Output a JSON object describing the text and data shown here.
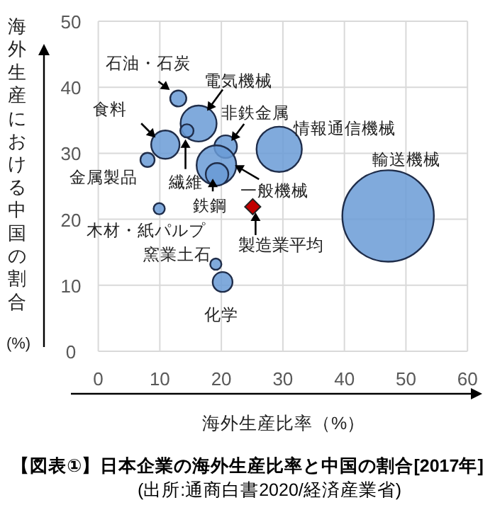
{
  "chart_data": {
    "type": "bubble",
    "title": "【図表①】日本企業の海外生産比率と中国の割合[2017年]",
    "xlabel": "海外生産比率（%）",
    "ylabel": "海外生産における中国の割合(%)",
    "xlim": [
      0,
      60
    ],
    "ylim": [
      0,
      50
    ],
    "xticks": [
      0,
      10,
      20,
      30,
      40,
      50,
      60
    ],
    "yticks": [
      0,
      10,
      20,
      30,
      40,
      50
    ],
    "grid": true,
    "series": [
      {
        "color": "#6a9bd6",
        "x": [
          13.0,
          16.3,
          14.4,
          10.9,
          8.0,
          20.7,
          19.2,
          19.3,
          29.4,
          47.1,
          9.9,
          19.1,
          20.2
        ],
        "values": [
          38.3,
          34.5,
          33.4,
          31.3,
          29.0,
          31.0,
          28.2,
          26.8,
          30.6,
          20.5,
          21.6,
          13.2,
          10.5
        ],
        "sizes": [
          0.031,
          0.155,
          0.021,
          0.096,
          0.024,
          0.061,
          0.188,
          0.061,
          0.245,
          1,
          0.015,
          0.015,
          0.047
        ]
      },
      {
        "type": "scatter",
        "name": "製造業平均",
        "color": "#c00000",
        "marker": "diamond",
        "x": [
          25.1
        ],
        "values": [
          21.9
        ]
      }
    ],
    "annotations": [
      {
        "text": "石油・石炭",
        "x": 13.0,
        "y": 38.3
      },
      {
        "text": "電気機械",
        "x": 16.3,
        "y": 34.5
      },
      {
        "text": "繊維",
        "x": 14.4,
        "y": 33.4
      },
      {
        "text": "食料",
        "x": 10.9,
        "y": 31.3
      },
      {
        "text": "金属製品",
        "x": 8.0,
        "y": 29.0
      },
      {
        "text": "非鉄金属",
        "x": 20.7,
        "y": 31.0
      },
      {
        "text": "一般機械",
        "x": 19.2,
        "y": 28.2
      },
      {
        "text": "鉄鋼",
        "x": 19.3,
        "y": 26.8
      },
      {
        "text": "情報通信機械",
        "x": 29.4,
        "y": 30.6
      },
      {
        "text": "輸送機械",
        "x": 47.1,
        "y": 20.5
      },
      {
        "text": "木材・紙パルプ",
        "x": 9.9,
        "y": 21.6
      },
      {
        "text": "窯業土石",
        "x": 19.1,
        "y": 13.2
      },
      {
        "text": "化学",
        "x": 20.2,
        "y": 10.5
      },
      "(出所:通商白書2020/経済産業省)"
    ]
  }
}
